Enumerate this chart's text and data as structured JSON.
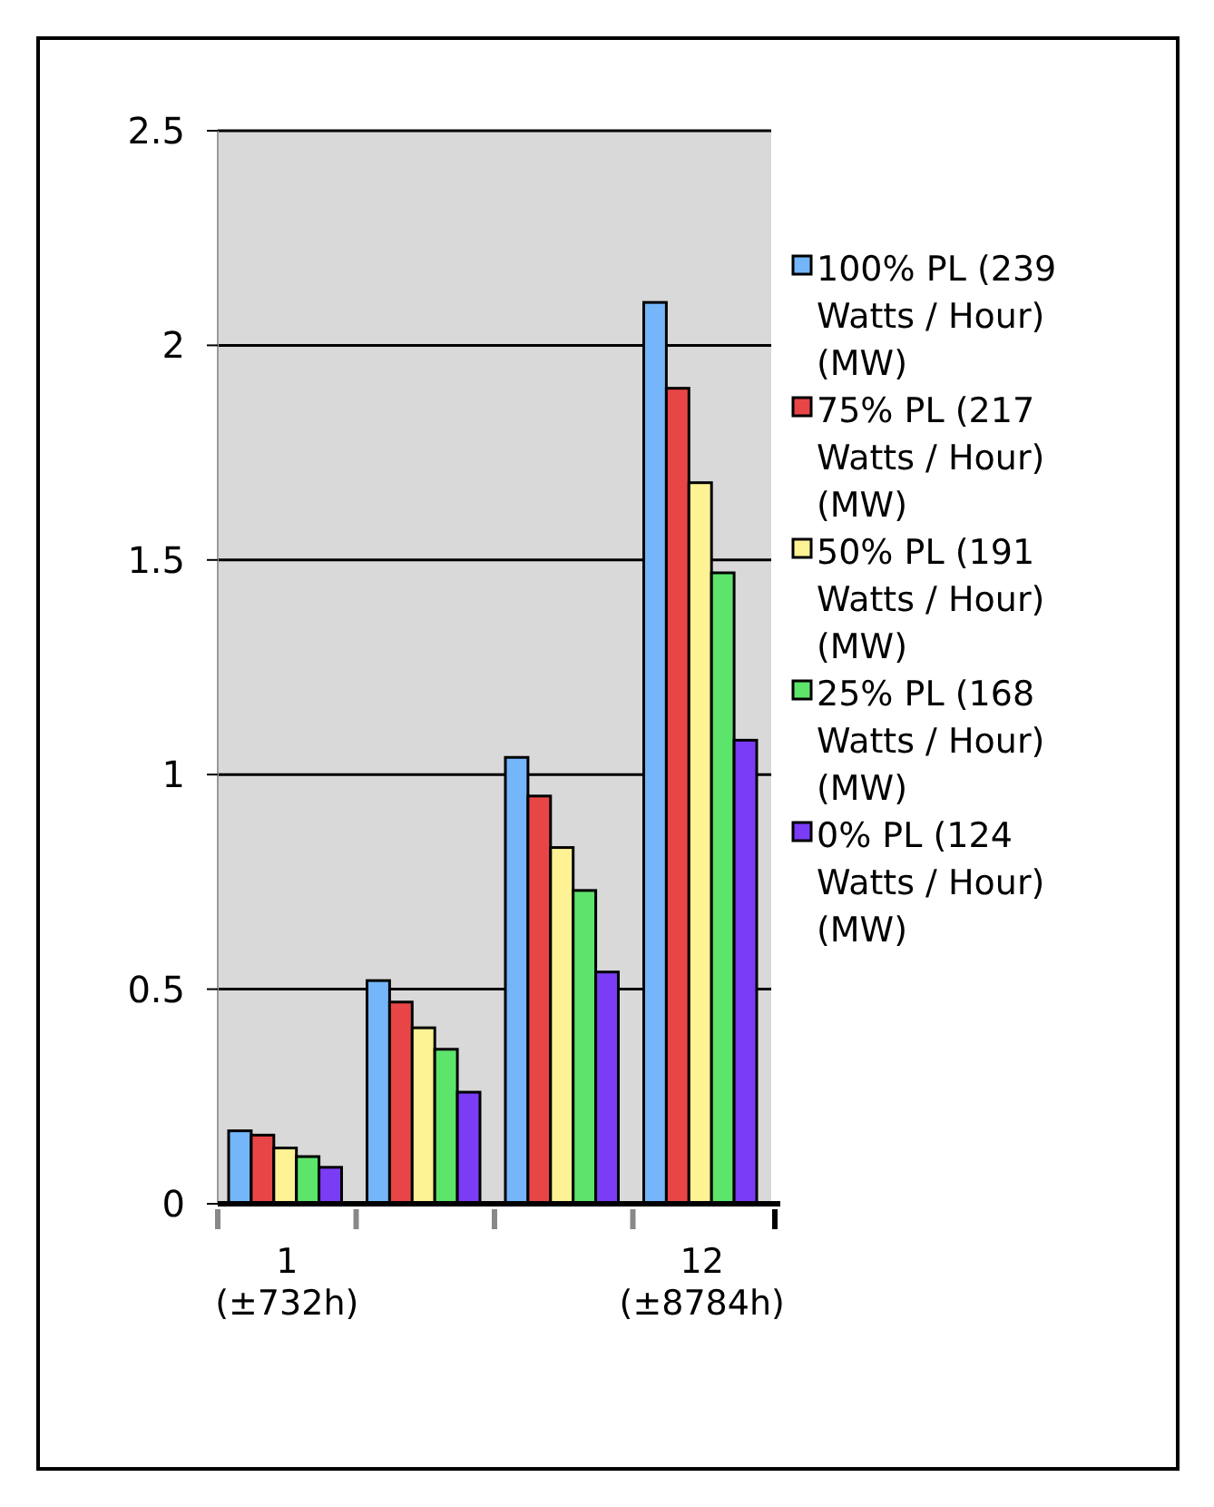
{
  "chart_data": {
    "type": "bar",
    "categories": [
      "1 (±732h)",
      null,
      null,
      "12 (±8784h)"
    ],
    "series": [
      {
        "name": "100% PL (239 Watts / Hour) (MW)",
        "color": "#74b6f9",
        "values": [
          0.17,
          0.52,
          1.04,
          2.1
        ]
      },
      {
        "name": "75% PL (217 Watts / Hour) (MW)",
        "color": "#e84646",
        "values": [
          0.16,
          0.47,
          0.95,
          1.9
        ]
      },
      {
        "name": "50% PL (191 Watts / Hour) (MW)",
        "color": "#fdf294",
        "values": [
          0.13,
          0.41,
          0.83,
          1.68
        ]
      },
      {
        "name": "25% PL (168 Watts / Hour) (MW)",
        "color": "#5de46b",
        "values": [
          0.11,
          0.36,
          0.73,
          1.47
        ]
      },
      {
        "name": "0% PL (124 Watts / Hour) (MW)",
        "color": "#7b3cf5",
        "values": [
          0.085,
          0.26,
          0.54,
          1.08
        ]
      }
    ],
    "ylim": [
      0,
      2.5
    ],
    "yticks": [
      0,
      0.5,
      1,
      1.5,
      2,
      2.5
    ],
    "grid": "y",
    "legend": "right"
  }
}
